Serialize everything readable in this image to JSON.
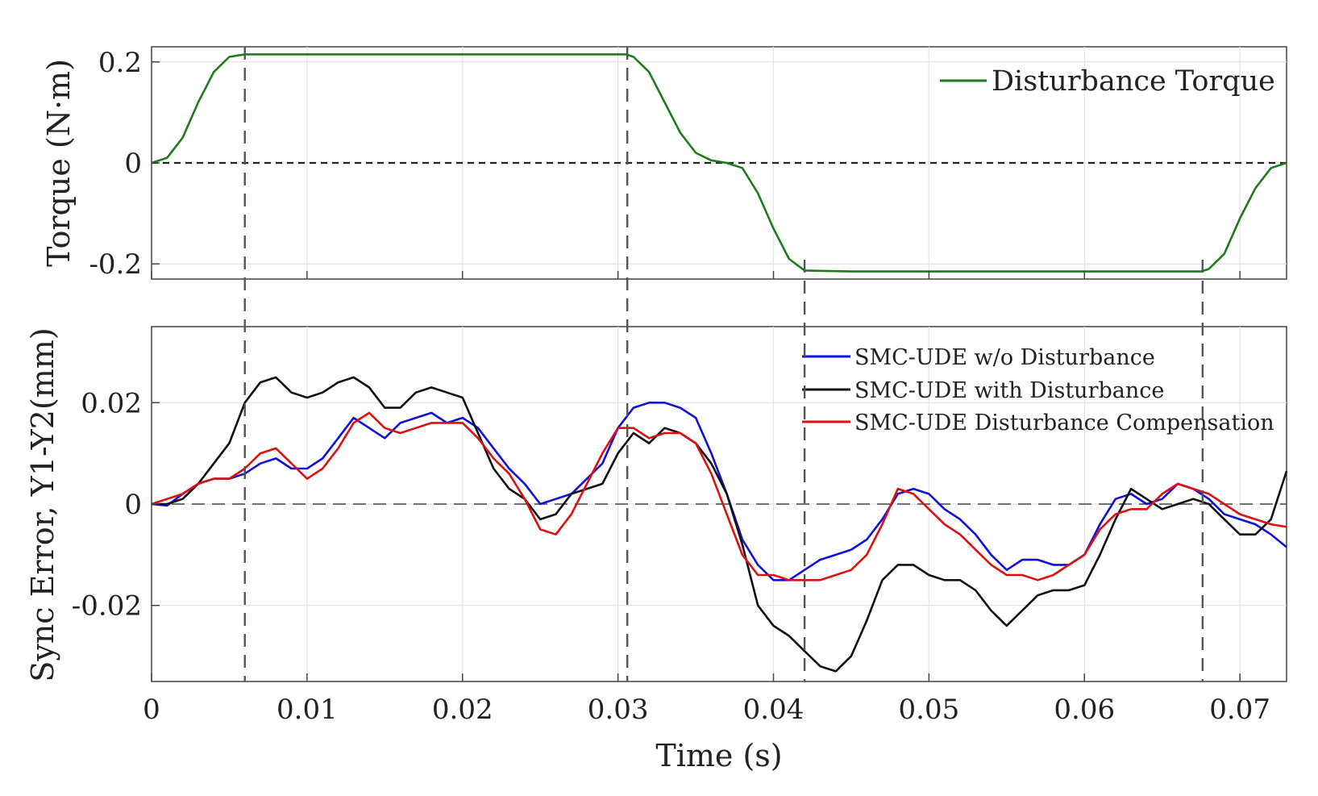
{
  "chart_data": [
    {
      "type": "line",
      "title": "",
      "xlabel": "",
      "ylabel": "Torque (N·m)",
      "xlim": [
        0,
        0.073
      ],
      "ylim": [
        -0.23,
        0.23
      ],
      "yticks": [
        0.2,
        0,
        -0.2
      ],
      "ytick_labels": [
        "0.2",
        "0",
        "-0.2"
      ],
      "xticks": [
        0,
        0.01,
        0.02,
        0.03,
        0.04,
        0.05,
        0.06,
        0.07
      ],
      "grid": true,
      "legend_position": "top-right",
      "reference_line": {
        "y": 0,
        "style": "dashed"
      },
      "series": [
        {
          "name": "Disturbance Torque",
          "color": "#1f7a1f",
          "x": [
            0,
            0.001,
            0.002,
            0.003,
            0.004,
            0.005,
            0.006,
            0.008,
            0.01,
            0.015,
            0.02,
            0.025,
            0.03,
            0.0305,
            0.031,
            0.032,
            0.033,
            0.034,
            0.035,
            0.036,
            0.037,
            0.038,
            0.039,
            0.04,
            0.041,
            0.042,
            0.045,
            0.05,
            0.055,
            0.06,
            0.065,
            0.0675,
            0.068,
            0.069,
            0.07,
            0.071,
            0.072,
            0.073
          ],
          "y": [
            0,
            0.01,
            0.05,
            0.12,
            0.18,
            0.21,
            0.215,
            0.215,
            0.215,
            0.215,
            0.215,
            0.215,
            0.215,
            0.215,
            0.21,
            0.18,
            0.12,
            0.06,
            0.02,
            0.005,
            0,
            -0.01,
            -0.06,
            -0.13,
            -0.19,
            -0.213,
            -0.215,
            -0.215,
            -0.215,
            -0.215,
            -0.215,
            -0.215,
            -0.21,
            -0.18,
            -0.11,
            -0.05,
            -0.01,
            0
          ]
        }
      ]
    },
    {
      "type": "line",
      "title": "",
      "xlabel": "Time (s)",
      "ylabel": "Sync Error, Y1-Y2(mm)",
      "xlim": [
        0,
        0.073
      ],
      "ylim": [
        -0.035,
        0.035
      ],
      "yticks": [
        0.02,
        0,
        -0.02
      ],
      "ytick_labels": [
        "0.02",
        "0",
        "-0.02"
      ],
      "xticks": [
        0,
        0.01,
        0.02,
        0.03,
        0.04,
        0.05,
        0.06,
        0.07
      ],
      "xtick_labels": [
        "0",
        "0.01",
        "0.02",
        "0.03",
        "0.04",
        "0.05",
        "0.06",
        "0.07"
      ],
      "grid": true,
      "legend_position": "top-right",
      "reference_line": {
        "y": 0,
        "style": "dashed"
      },
      "vertical_markers": [
        0.006,
        0.0306,
        0.042,
        0.0676
      ],
      "series": [
        {
          "name": "SMC-UDE w/o Disturbance",
          "color": "#1010dd",
          "x": [
            0,
            0.001,
            0.002,
            0.003,
            0.004,
            0.005,
            0.006,
            0.007,
            0.008,
            0.009,
            0.01,
            0.011,
            0.012,
            0.013,
            0.014,
            0.015,
            0.016,
            0.017,
            0.018,
            0.019,
            0.02,
            0.021,
            0.022,
            0.023,
            0.024,
            0.025,
            0.026,
            0.027,
            0.028,
            0.029,
            0.03,
            0.031,
            0.032,
            0.033,
            0.034,
            0.035,
            0.036,
            0.037,
            0.038,
            0.039,
            0.04,
            0.041,
            0.042,
            0.043,
            0.044,
            0.045,
            0.046,
            0.047,
            0.048,
            0.049,
            0.05,
            0.051,
            0.052,
            0.053,
            0.054,
            0.055,
            0.056,
            0.057,
            0.058,
            0.059,
            0.06,
            0.061,
            0.062,
            0.063,
            0.064,
            0.065,
            0.066,
            0.067,
            0.068,
            0.069,
            0.07,
            0.071,
            0.072,
            0.073
          ],
          "y": [
            0,
            -0.0003,
            0.002,
            0.004,
            0.005,
            0.005,
            0.006,
            0.008,
            0.009,
            0.007,
            0.007,
            0.009,
            0.013,
            0.017,
            0.015,
            0.013,
            0.016,
            0.017,
            0.018,
            0.016,
            0.017,
            0.015,
            0.011,
            0.007,
            0.004,
            0,
            0.001,
            0.002,
            0.005,
            0.008,
            0.015,
            0.019,
            0.02,
            0.02,
            0.019,
            0.017,
            0.01,
            0.002,
            -0.007,
            -0.012,
            -0.015,
            -0.015,
            -0.013,
            -0.011,
            -0.01,
            -0.009,
            -0.007,
            -0.003,
            0.002,
            0.003,
            0.002,
            -0.001,
            -0.003,
            -0.006,
            -0.01,
            -0.013,
            -0.011,
            -0.011,
            -0.012,
            -0.012,
            -0.01,
            -0.004,
            0.001,
            0.002,
            0.0,
            0.001,
            0.004,
            0.003,
            0.001,
            -0.002,
            -0.003,
            -0.004,
            -0.006,
            -0.0085
          ]
        },
        {
          "name": "SMC-UDE with Disturbance",
          "color": "#111111",
          "x": [
            0,
            0.001,
            0.002,
            0.003,
            0.004,
            0.005,
            0.006,
            0.007,
            0.008,
            0.009,
            0.01,
            0.011,
            0.012,
            0.013,
            0.014,
            0.015,
            0.016,
            0.017,
            0.018,
            0.019,
            0.02,
            0.021,
            0.022,
            0.023,
            0.024,
            0.025,
            0.026,
            0.027,
            0.028,
            0.029,
            0.03,
            0.031,
            0.032,
            0.033,
            0.034,
            0.035,
            0.036,
            0.037,
            0.038,
            0.039,
            0.04,
            0.041,
            0.042,
            0.043,
            0.044,
            0.045,
            0.046,
            0.047,
            0.048,
            0.049,
            0.05,
            0.051,
            0.052,
            0.053,
            0.054,
            0.055,
            0.056,
            0.057,
            0.058,
            0.059,
            0.06,
            0.061,
            0.062,
            0.063,
            0.064,
            0.065,
            0.066,
            0.067,
            0.068,
            0.069,
            0.07,
            0.071,
            0.072,
            0.073
          ],
          "y": [
            0,
            0,
            0.001,
            0.004,
            0.008,
            0.012,
            0.02,
            0.024,
            0.025,
            0.022,
            0.021,
            0.022,
            0.024,
            0.025,
            0.023,
            0.019,
            0.019,
            0.022,
            0.023,
            0.022,
            0.021,
            0.014,
            0.007,
            0.003,
            0.001,
            -0.003,
            -0.002,
            0.002,
            0.003,
            0.004,
            0.01,
            0.014,
            0.012,
            0.015,
            0.014,
            0.012,
            0.008,
            0.002,
            -0.008,
            -0.02,
            -0.024,
            -0.026,
            -0.029,
            -0.032,
            -0.033,
            -0.03,
            -0.023,
            -0.015,
            -0.012,
            -0.012,
            -0.014,
            -0.015,
            -0.015,
            -0.017,
            -0.021,
            -0.024,
            -0.021,
            -0.018,
            -0.017,
            -0.017,
            -0.016,
            -0.01,
            -0.003,
            0.003,
            0.001,
            -0.001,
            0.0,
            0.001,
            0.0,
            -0.003,
            -0.006,
            -0.006,
            -0.003,
            0.0065
          ]
        },
        {
          "name": "SMC-UDE Disturbance Compensation",
          "color": "#dd1010",
          "x": [
            0,
            0.001,
            0.002,
            0.003,
            0.004,
            0.005,
            0.006,
            0.007,
            0.008,
            0.009,
            0.01,
            0.011,
            0.012,
            0.013,
            0.014,
            0.015,
            0.016,
            0.017,
            0.018,
            0.019,
            0.02,
            0.021,
            0.022,
            0.023,
            0.024,
            0.025,
            0.026,
            0.027,
            0.028,
            0.029,
            0.03,
            0.031,
            0.032,
            0.033,
            0.034,
            0.035,
            0.036,
            0.037,
            0.038,
            0.039,
            0.04,
            0.041,
            0.042,
            0.043,
            0.044,
            0.045,
            0.046,
            0.047,
            0.048,
            0.049,
            0.05,
            0.051,
            0.052,
            0.053,
            0.054,
            0.055,
            0.056,
            0.057,
            0.058,
            0.059,
            0.06,
            0.061,
            0.062,
            0.063,
            0.064,
            0.065,
            0.066,
            0.067,
            0.068,
            0.069,
            0.07,
            0.071,
            0.072,
            0.073
          ],
          "y": [
            0,
            0.001,
            0.002,
            0.004,
            0.005,
            0.005,
            0.007,
            0.01,
            0.011,
            0.008,
            0.005,
            0.007,
            0.011,
            0.016,
            0.018,
            0.015,
            0.014,
            0.015,
            0.016,
            0.016,
            0.016,
            0.013,
            0.009,
            0.006,
            0.001,
            -0.005,
            -0.006,
            -0.002,
            0.004,
            0.01,
            0.015,
            0.015,
            0.013,
            0.014,
            0.014,
            0.012,
            0.006,
            -0.002,
            -0.01,
            -0.014,
            -0.014,
            -0.015,
            -0.015,
            -0.015,
            -0.014,
            -0.013,
            -0.01,
            -0.004,
            0.003,
            0.002,
            -0.001,
            -0.004,
            -0.006,
            -0.009,
            -0.012,
            -0.014,
            -0.014,
            -0.015,
            -0.014,
            -0.012,
            -0.01,
            -0.005,
            -0.002,
            -0.001,
            -0.001,
            0.002,
            0.004,
            0.003,
            0.002,
            0.0,
            -0.002,
            -0.003,
            -0.004,
            -0.0045
          ]
        }
      ]
    }
  ]
}
